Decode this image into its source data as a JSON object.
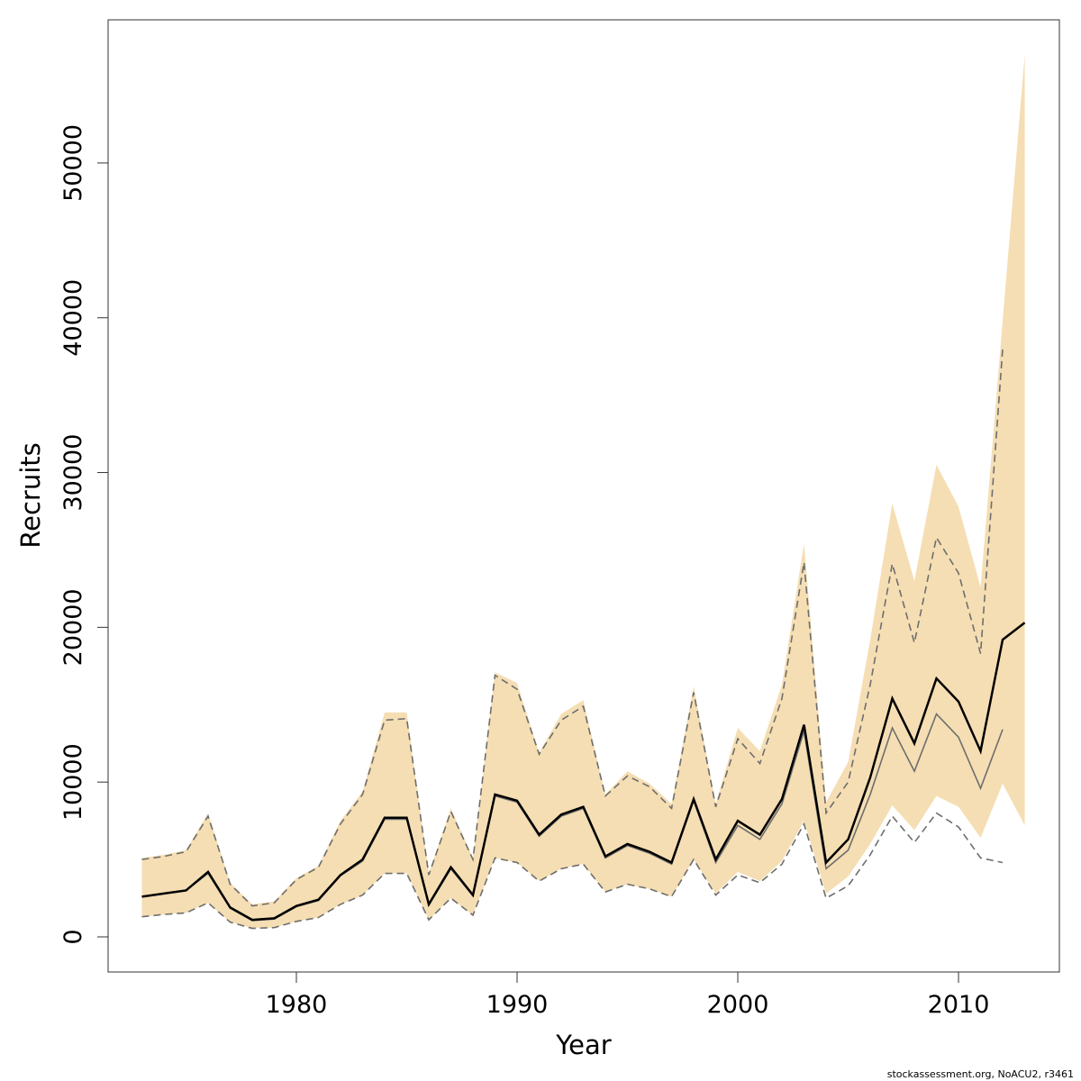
{
  "chart_data": {
    "type": "line",
    "x_label": "Year",
    "y_label": "Recruits",
    "footer": "stockassessment.org, NoACU2, r3461",
    "x": [
      1973,
      1974,
      1975,
      1976,
      1977,
      1978,
      1979,
      1980,
      1981,
      1982,
      1983,
      1984,
      1985,
      1986,
      1987,
      1988,
      1989,
      1990,
      1991,
      1992,
      1993,
      1994,
      1995,
      1996,
      1997,
      1998,
      1999,
      2000,
      2001,
      2002,
      2003,
      2004,
      2005,
      2006,
      2007,
      2008,
      2009,
      2010,
      2011,
      2012,
      2013
    ],
    "band": {
      "color": "#f5deb3",
      "upper": [
        5100,
        5300,
        5600,
        8000,
        3500,
        2100,
        2300,
        3800,
        4600,
        7500,
        9400,
        14500,
        14500,
        4100,
        8300,
        5100,
        17100,
        16400,
        11900,
        14400,
        15300,
        9200,
        10700,
        9900,
        8600,
        16200,
        8600,
        13500,
        12000,
        16300,
        25400,
        8700,
        11300,
        19200,
        28000,
        23000,
        30500,
        27800,
        22600,
        39800,
        57000
      ],
      "lower": [
        1300,
        1450,
        1550,
        2200,
        950,
        550,
        600,
        1000,
        1250,
        2100,
        2700,
        4100,
        4100,
        1100,
        2500,
        1400,
        5100,
        4800,
        3600,
        4400,
        4700,
        2900,
        3400,
        3100,
        2600,
        5000,
        2800,
        4200,
        3600,
        4900,
        7500,
        2800,
        3900,
        6000,
        8500,
        6900,
        9100,
        8400,
        6400,
        9900,
        7200
      ]
    },
    "series": [
      {
        "color": "#6e6e6e",
        "dash": true,
        "values": [
          5000,
          5200,
          5500,
          7800,
          3400,
          2000,
          2200,
          3700,
          4500,
          7300,
          9200,
          14000,
          14100,
          4000,
          8100,
          5000,
          16900,
          16000,
          11800,
          14000,
          14900,
          9100,
          10400,
          9700,
          8300,
          15800,
          8400,
          12800,
          11200,
          15400,
          24200,
          8000,
          10000,
          16300,
          24100,
          19000,
          25800,
          23500,
          18300,
          38000,
          null
        ]
      },
      {
        "color": "#6e6e6e",
        "dash": true,
        "values": [
          1300,
          1450,
          1550,
          2200,
          950,
          550,
          600,
          1000,
          1250,
          2100,
          2700,
          4100,
          4100,
          1100,
          2500,
          1400,
          5100,
          4800,
          3600,
          4400,
          4700,
          2900,
          3400,
          3100,
          2600,
          5000,
          2700,
          4000,
          3500,
          4700,
          7300,
          2500,
          3300,
          5300,
          7800,
          6100,
          8000,
          7100,
          5100,
          4800,
          null
        ]
      },
      {
        "color": "#6e6e6e",
        "dash": false,
        "values": [
          2600,
          2800,
          3000,
          4100,
          1850,
          1050,
          1150,
          1950,
          2350,
          3950,
          4900,
          7600,
          7600,
          2050,
          4400,
          2650,
          9100,
          8700,
          6500,
          7800,
          8300,
          5100,
          5900,
          5400,
          4700,
          8800,
          4800,
          7200,
          6300,
          8600,
          13300,
          4400,
          5600,
          9200,
          13500,
          10700,
          14400,
          12900,
          9600,
          13400,
          null
        ]
      },
      {
        "color": "#000000",
        "dash": false,
        "values": [
          2600,
          2800,
          3000,
          4200,
          1900,
          1100,
          1200,
          2000,
          2400,
          4000,
          5000,
          7700,
          7700,
          2100,
          4500,
          2700,
          9200,
          8800,
          6600,
          7900,
          8400,
          5200,
          6000,
          5500,
          4800,
          8900,
          5000,
          7500,
          6600,
          8900,
          13700,
          4800,
          6300,
          10300,
          15400,
          12500,
          16700,
          15200,
          12000,
          19200,
          20300
        ]
      }
    ],
    "xlim": [
      1971.47,
      2014.57
    ],
    "xticks": [
      1980,
      1990,
      2000,
      2010
    ],
    "ylim": [
      -2270,
      59250
    ],
    "yticks": [
      0,
      10000,
      20000,
      30000,
      40000,
      50000
    ]
  }
}
